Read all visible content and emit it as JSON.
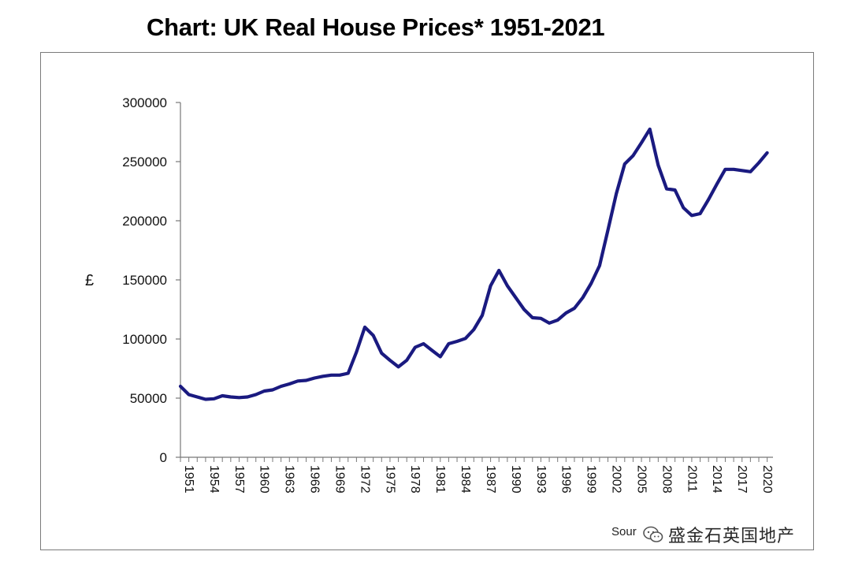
{
  "chart_data": {
    "type": "line",
    "title": "Chart: UK Real House Prices* 1951-2021",
    "xlabel": "",
    "ylabel": "£",
    "ylim": [
      0,
      300000
    ],
    "yticks": [
      0,
      50000,
      100000,
      150000,
      200000,
      250000,
      300000
    ],
    "ytick_labels": [
      "0",
      "50000",
      "100000",
      "150000",
      "200000",
      "250000",
      "300000"
    ],
    "xlim": [
      1951,
      2021
    ],
    "xtick_labels": [
      "1951",
      "1954",
      "1957",
      "1960",
      "1963",
      "1966",
      "1969",
      "1972",
      "1975",
      "1978",
      "1981",
      "1984",
      "1987",
      "1990",
      "1993",
      "1996",
      "1999",
      "2002",
      "2005",
      "2008",
      "2011",
      "2014",
      "2017",
      "2020"
    ],
    "grid": false,
    "legend": "none",
    "series": [
      {
        "name": "UK Real House Prices",
        "color": "#1a1a80",
        "x": [
          1951,
          1952,
          1953,
          1954,
          1955,
          1956,
          1957,
          1958,
          1959,
          1960,
          1961,
          1962,
          1963,
          1964,
          1965,
          1966,
          1967,
          1968,
          1969,
          1970,
          1971,
          1972,
          1973,
          1974,
          1975,
          1976,
          1977,
          1978,
          1979,
          1980,
          1981,
          1982,
          1983,
          1984,
          1985,
          1986,
          1987,
          1988,
          1989,
          1990,
          1991,
          1992,
          1993,
          1994,
          1995,
          1996,
          1997,
          1998,
          1999,
          2000,
          2001,
          2002,
          2003,
          2004,
          2005,
          2006,
          2007,
          2008,
          2009,
          2010,
          2011,
          2012,
          2013,
          2014,
          2015,
          2016,
          2017,
          2018,
          2019,
          2020,
          2021
        ],
        "values": [
          60000,
          53000,
          51000,
          49000,
          49500,
          52000,
          51000,
          50500,
          51000,
          53000,
          56000,
          57000,
          60000,
          62000,
          64500,
          65000,
          67000,
          68500,
          69500,
          69500,
          71000,
          89000,
          110000,
          103000,
          88000,
          82000,
          76500,
          82000,
          93000,
          96000,
          90500,
          85000,
          96000,
          98000,
          100500,
          108000,
          120000,
          145000,
          158000,
          145000,
          135000,
          125000,
          118000,
          117500,
          113500,
          116000,
          122000,
          126000,
          135000,
          147000,
          162000,
          192000,
          223000,
          248000,
          255000,
          266000,
          277500,
          247000,
          227000,
          226000,
          211000,
          204500,
          206000,
          218000,
          231000,
          243500,
          243500,
          242500,
          241500,
          249000,
          257500
        ]
      }
    ]
  },
  "source_text": "Sour",
  "watermark": {
    "text": "盛金石英国地产"
  }
}
